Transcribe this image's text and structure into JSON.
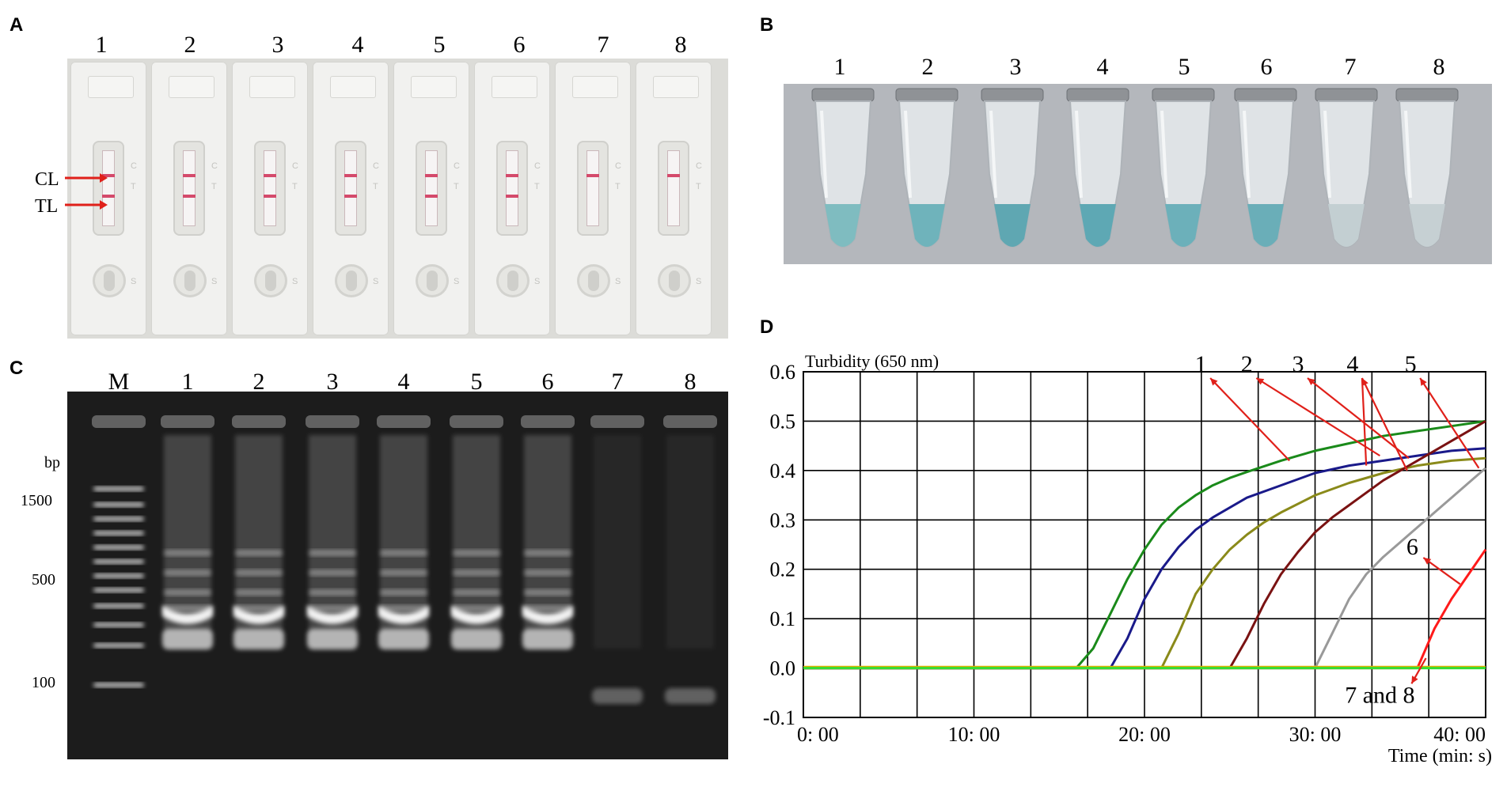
{
  "panel_letters": [
    "A",
    "B",
    "C",
    "D"
  ],
  "panelA": {
    "lane_numbers": [
      "1",
      "2",
      "3",
      "4",
      "5",
      "6",
      "7",
      "8"
    ],
    "line_labels": [
      "CL",
      "TL"
    ],
    "strip_marks": [
      "C",
      "T",
      "S"
    ],
    "test_line_present": [
      true,
      true,
      true,
      true,
      true,
      true,
      false,
      false
    ]
  },
  "panelB": {
    "lane_numbers": [
      "1",
      "2",
      "3",
      "4",
      "5",
      "6",
      "7",
      "8"
    ],
    "solution_colors": [
      "#7fbcc0",
      "#6fb3bb",
      "#5fa7b2",
      "#5ea8b4",
      "#6cb0ba",
      "#6aaeb8",
      "#c3cfd2",
      "#c6d0d3"
    ]
  },
  "panelC": {
    "lane_numbers": [
      "M",
      "1",
      "2",
      "3",
      "4",
      "5",
      "6",
      "7",
      "8"
    ],
    "size_unit": "bp",
    "marker_sizes": [
      "1500",
      "500",
      "100"
    ],
    "lane_has_ladder": [
      true,
      true,
      true,
      true,
      true,
      true,
      false,
      false
    ]
  },
  "chart_data": {
    "type": "line",
    "title": "Turbidity (650 nm)",
    "xlabel": "Time (min: s)",
    "xticks": [
      "0: 00",
      "10: 00",
      "20: 00",
      "30: 00",
      "40: 00"
    ],
    "yticks": [
      "-0.1",
      "0.0",
      "0.1",
      "0.2",
      "0.3",
      "0.4",
      "0.5",
      "0.6"
    ],
    "xlim": [
      0,
      40
    ],
    "ylim": [
      -0.1,
      0.6
    ],
    "grid": true,
    "annotations": [
      "1",
      "2",
      "3",
      "4",
      "5",
      "6",
      "7 and 8"
    ],
    "series": [
      {
        "color": "#1a8a1a",
        "x": [
          0,
          16,
          17,
          18,
          19,
          20,
          21,
          22,
          23,
          24,
          25,
          26,
          28,
          30,
          32,
          34,
          36,
          38,
          40
        ],
        "y": [
          0,
          0,
          0.04,
          0.11,
          0.18,
          0.24,
          0.29,
          0.325,
          0.35,
          0.37,
          0.385,
          0.397,
          0.42,
          0.44,
          0.455,
          0.47,
          0.48,
          0.49,
          0.5
        ]
      },
      {
        "color": "#1a1a8a",
        "x": [
          0,
          18,
          19,
          20,
          21,
          22,
          23,
          24,
          26,
          28,
          30,
          32,
          34,
          36,
          38,
          40
        ],
        "y": [
          0,
          0,
          0.06,
          0.14,
          0.2,
          0.245,
          0.28,
          0.305,
          0.345,
          0.37,
          0.395,
          0.41,
          0.42,
          0.43,
          0.44,
          0.445
        ]
      },
      {
        "color": "#8a8a1a",
        "x": [
          0,
          21,
          22,
          23,
          24,
          25,
          26,
          27,
          28,
          30,
          32,
          34,
          36,
          38,
          40
        ],
        "y": [
          0,
          0,
          0.07,
          0.15,
          0.2,
          0.24,
          0.27,
          0.295,
          0.315,
          0.35,
          0.375,
          0.395,
          0.41,
          0.42,
          0.425
        ]
      },
      {
        "color": "#7a1212",
        "x": [
          0,
          25,
          26,
          27,
          28,
          29,
          30,
          31,
          32,
          34,
          36,
          38,
          40
        ],
        "y": [
          0,
          0,
          0.06,
          0.13,
          0.19,
          0.235,
          0.275,
          0.305,
          0.33,
          0.38,
          0.42,
          0.46,
          0.5
        ]
      },
      {
        "color": "#999999",
        "x": [
          0,
          30,
          31,
          32,
          33,
          34,
          35,
          36,
          37,
          38,
          39,
          40
        ],
        "y": [
          0,
          0,
          0.07,
          0.14,
          0.19,
          0.225,
          0.255,
          0.285,
          0.315,
          0.345,
          0.375,
          0.405
        ]
      },
      {
        "color": "#ff1a1a",
        "x": [
          0,
          36,
          37,
          38,
          39,
          40
        ],
        "y": [
          0,
          0,
          0.08,
          0.14,
          0.19,
          0.24
        ]
      },
      {
        "color": "#e0b000",
        "x": [
          0,
          40
        ],
        "y": [
          0.002,
          0.002
        ]
      },
      {
        "color": "#33dd33",
        "x": [
          0,
          40
        ],
        "y": [
          0,
          0
        ]
      }
    ]
  }
}
